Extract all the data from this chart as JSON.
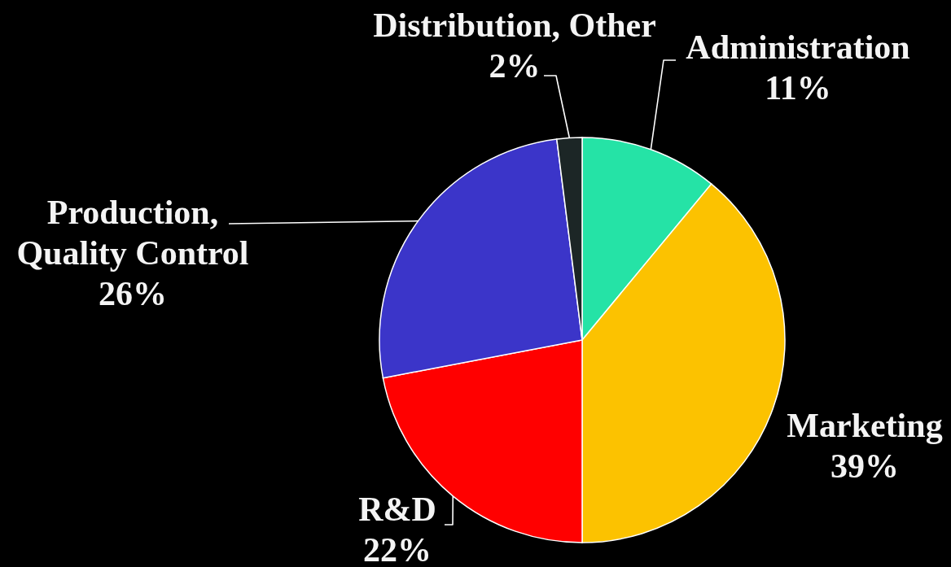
{
  "chart_data": {
    "type": "pie",
    "categories": [
      "Administration",
      "Marketing",
      "R&D",
      "Production,\nQuality Control",
      "Distribution, Other"
    ],
    "values": [
      11,
      39,
      22,
      26,
      2
    ],
    "colors": [
      "#25e3a6",
      "#fcc200",
      "#ff0000",
      "#3b35c9",
      "#1c2626"
    ],
    "value_labels": [
      "11%",
      "39%",
      "22%",
      "26%",
      "2%"
    ]
  }
}
